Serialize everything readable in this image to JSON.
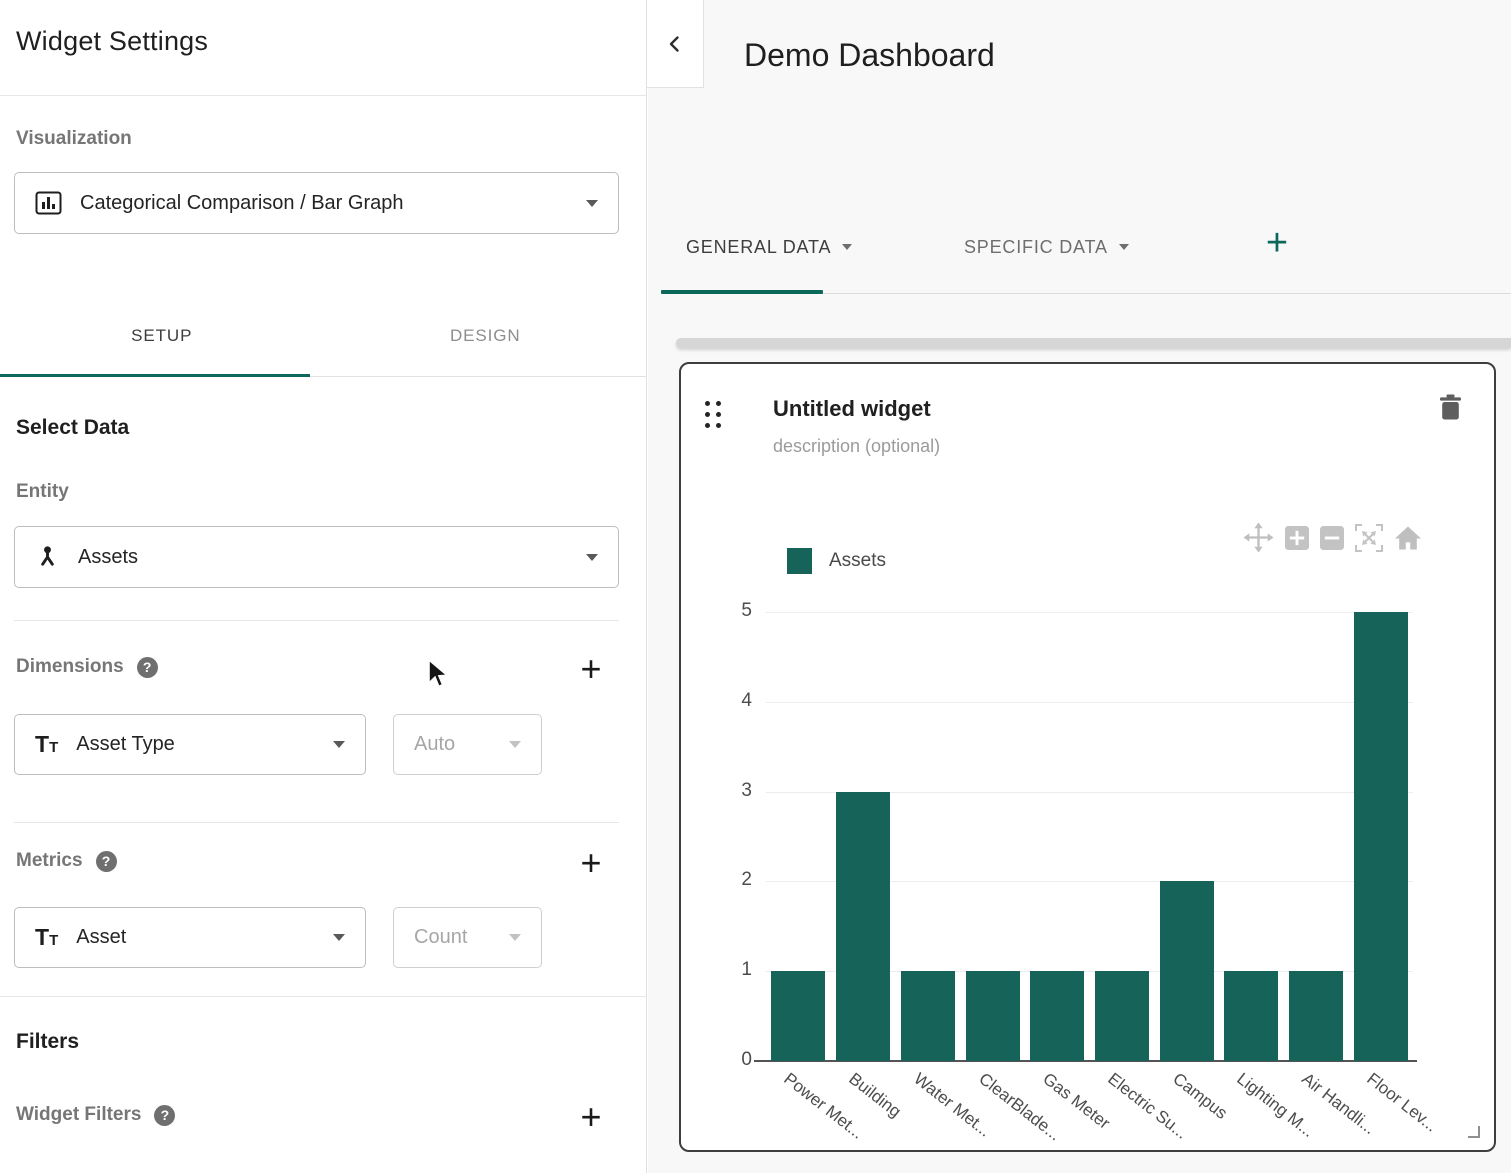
{
  "icons": {
    "question_mark": "?",
    "plus": "+",
    "type_large": "T",
    "type_small": "T"
  },
  "left_panel": {
    "title": "Widget Settings",
    "visualization": {
      "label": "Visualization",
      "selected": "Categorical Comparison / Bar Graph"
    },
    "tabs": {
      "setup": "SETUP",
      "design": "DESIGN"
    },
    "select_data_heading": "Select Data",
    "entity": {
      "label": "Entity",
      "selected": "Assets"
    },
    "dimensions": {
      "label": "Dimensions",
      "field": "Asset Type",
      "interval": "Auto"
    },
    "metrics": {
      "label": "Metrics",
      "field": "Asset",
      "aggregation": "Count"
    },
    "filters_heading": "Filters",
    "widget_filters": {
      "label": "Widget Filters"
    }
  },
  "dashboard": {
    "title": "Demo Dashboard",
    "tabs": [
      {
        "label": "GENERAL DATA",
        "active": true
      },
      {
        "label": "SPECIFIC DATA",
        "active": false
      }
    ],
    "widget": {
      "title": "Untitled widget",
      "description": "description (optional)",
      "legend_label": "Assets"
    }
  },
  "chart_data": {
    "type": "bar",
    "title": "Untitled widget",
    "categories": [
      "Power Met...",
      "Building",
      "Water Met...",
      "ClearBlade...",
      "Gas Meter",
      "Electric Su...",
      "Campus",
      "Lighting M...",
      "Air Handli...",
      "Floor Lev..."
    ],
    "series": [
      {
        "name": "Assets",
        "values": [
          1,
          3,
          1,
          1,
          1,
          1,
          2,
          1,
          1,
          5
        ]
      }
    ],
    "xlabel": "",
    "ylabel": "",
    "ylim": [
      0,
      5
    ],
    "yticks": [
      0,
      1,
      2,
      3,
      4,
      5
    ],
    "legend": [
      "Assets"
    ],
    "legend_position": "top-left",
    "grid": true,
    "bar_color": "#16635a",
    "label_rotation_deg": 38
  },
  "colors": {
    "accent_teal": "#0d685c",
    "bar_teal": "#16635a",
    "canvas_bg": "#f8f8f8",
    "card_border": "#3e3e3e",
    "toolbar_icon_gray": "#c0c0c0",
    "text_dark": "#1f1f1f",
    "text_gray": "#767676"
  }
}
